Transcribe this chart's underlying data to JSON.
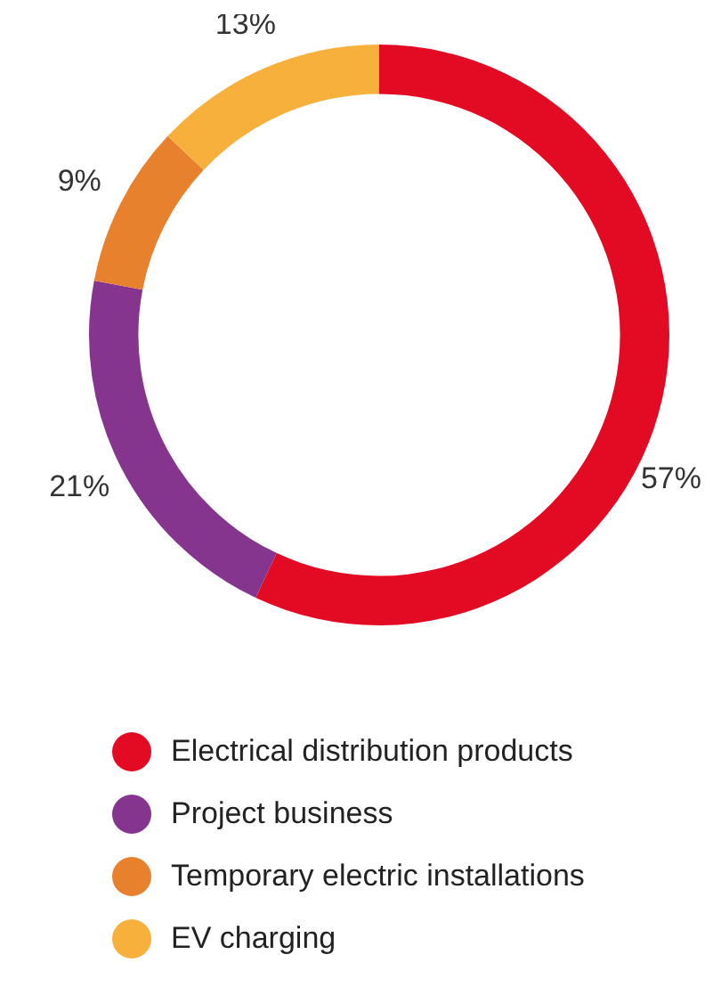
{
  "chart_data": {
    "type": "donut",
    "categories": [
      "Electrical distribution products",
      "Project business",
      "Temporary electric installations",
      "EV charging"
    ],
    "values": [
      57,
      21,
      9,
      13
    ],
    "colors": [
      "#e30a24",
      "#86358f",
      "#e8812e",
      "#f7b03c"
    ],
    "value_labels": [
      "57%",
      "21%",
      "9%",
      "13%"
    ],
    "legend": "bottom"
  }
}
